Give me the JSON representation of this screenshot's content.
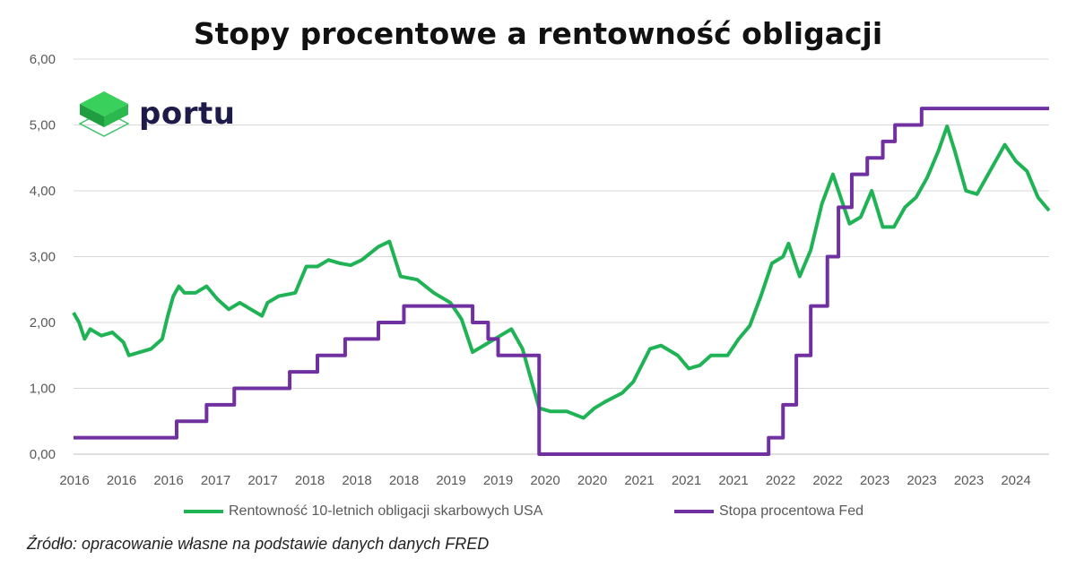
{
  "chart_data": {
    "type": "line",
    "title": "Stopy procentowe a rentowność obligacji",
    "ylim": [
      0,
      6
    ],
    "yticks": [
      "0,00",
      "1,00",
      "2,00",
      "3,00",
      "4,00",
      "5,00",
      "6,00"
    ],
    "xlim": [
      2016.0,
      2024.8
    ],
    "xticks": [
      "2016",
      "2016",
      "2016",
      "2017",
      "2017",
      "2018",
      "2018",
      "2018",
      "2019",
      "2019",
      "2020",
      "2020",
      "2021",
      "2021",
      "2021",
      "2022",
      "2022",
      "2023",
      "2023",
      "2023",
      "2024"
    ],
    "grid": true,
    "legend_position": "bottom",
    "series": [
      {
        "name": "Rentowność 10-letnich obligacji skarbowych USA",
        "color": "#1fb355",
        "step": false,
        "x": [
          2016.0,
          2016.05,
          2016.1,
          2016.15,
          2016.25,
          2016.35,
          2016.45,
          2016.5,
          2016.6,
          2016.7,
          2016.8,
          2016.85,
          2016.9,
          2016.95,
          2017.0,
          2017.1,
          2017.2,
          2017.3,
          2017.4,
          2017.5,
          2017.6,
          2017.7,
          2017.75,
          2017.85,
          2018.0,
          2018.1,
          2018.2,
          2018.3,
          2018.4,
          2018.5,
          2018.6,
          2018.75,
          2018.85,
          2018.95,
          2019.1,
          2019.25,
          2019.4,
          2019.5,
          2019.6,
          2019.7,
          2019.85,
          2019.95,
          2020.05,
          2020.15,
          2020.2,
          2020.3,
          2020.45,
          2020.6,
          2020.7,
          2020.8,
          2020.95,
          2021.05,
          2021.2,
          2021.3,
          2021.45,
          2021.55,
          2021.65,
          2021.75,
          2021.9,
          2022.0,
          2022.1,
          2022.2,
          2022.3,
          2022.4,
          2022.45,
          2022.55,
          2022.65,
          2022.75,
          2022.85,
          2022.92,
          2023.0,
          2023.1,
          2023.2,
          2023.3,
          2023.4,
          2023.5,
          2023.6,
          2023.7,
          2023.8,
          2023.88,
          2023.95,
          2024.05,
          2024.15,
          2024.25,
          2024.4,
          2024.5,
          2024.6,
          2024.7,
          2024.8
        ],
        "values": [
          2.15,
          2.0,
          1.75,
          1.9,
          1.8,
          1.85,
          1.7,
          1.5,
          1.55,
          1.6,
          1.75,
          2.1,
          2.4,
          2.55,
          2.45,
          2.45,
          2.55,
          2.35,
          2.2,
          2.3,
          2.2,
          2.1,
          2.3,
          2.4,
          2.45,
          2.85,
          2.85,
          2.95,
          2.9,
          2.87,
          2.95,
          3.15,
          3.23,
          2.7,
          2.65,
          2.45,
          2.3,
          2.05,
          1.55,
          1.65,
          1.8,
          1.9,
          1.6,
          1.0,
          0.7,
          0.65,
          0.65,
          0.55,
          0.7,
          0.8,
          0.93,
          1.1,
          1.6,
          1.65,
          1.5,
          1.3,
          1.35,
          1.5,
          1.5,
          1.75,
          1.95,
          2.4,
          2.9,
          3.0,
          3.2,
          2.7,
          3.1,
          3.8,
          4.25,
          3.9,
          3.5,
          3.6,
          4.0,
          3.45,
          3.45,
          3.75,
          3.9,
          4.2,
          4.6,
          4.98,
          4.6,
          4.0,
          3.95,
          4.25,
          4.7,
          4.45,
          4.3,
          3.9,
          3.7
        ]
      },
      {
        "name": "Stopa procentowa Fed",
        "color": "#7030a0",
        "step": true,
        "x": [
          2016.0,
          2016.93,
          2017.2,
          2017.45,
          2017.95,
          2018.2,
          2018.45,
          2018.75,
          2018.98,
          2019.6,
          2019.74,
          2019.83,
          2020.2,
          2022.27,
          2022.4,
          2022.52,
          2022.65,
          2022.8,
          2022.9,
          2023.02,
          2023.16,
          2023.3,
          2023.41,
          2023.65,
          2024.8
        ],
        "values": [
          0.25,
          0.5,
          0.75,
          1.0,
          1.25,
          1.5,
          1.75,
          2.0,
          2.25,
          2.0,
          1.75,
          1.5,
          0.0,
          0.25,
          0.75,
          1.5,
          2.25,
          3.0,
          3.75,
          4.25,
          4.5,
          4.75,
          5.0,
          5.25,
          5.25
        ]
      }
    ]
  },
  "logo": {
    "text": "portu"
  },
  "source": "Źródło: opracowanie własne na podstawie danych danych FRED"
}
